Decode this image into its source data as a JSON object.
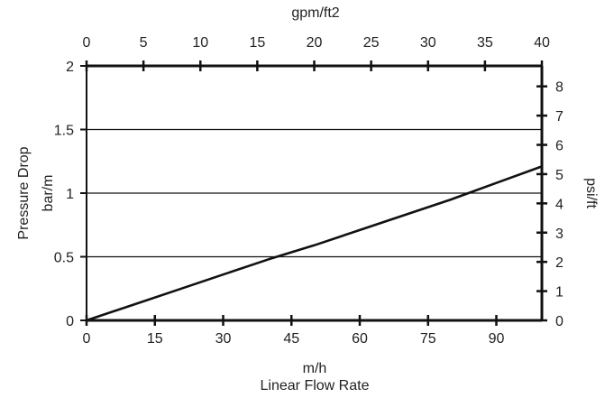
{
  "chart_data": {
    "type": "line",
    "title": "",
    "xlabel": "m/h",
    "xlabel_sub": "Linear Flow Rate",
    "ylabel": "Pressure Drop",
    "ylabel_sub": "bar/m",
    "x2label": "gpm/ft2",
    "y2label": "psi/ft",
    "xlim": [
      0,
      100
    ],
    "ylim": [
      0,
      2
    ],
    "x2lim": [
      0,
      40
    ],
    "y2lim": [
      0,
      8.7
    ],
    "x_ticks": [
      0,
      15,
      30,
      45,
      60,
      75,
      90
    ],
    "y_ticks": [
      0,
      0.5,
      1,
      1.5,
      2
    ],
    "x2_ticks": [
      0,
      5,
      10,
      15,
      20,
      25,
      30,
      35,
      40
    ],
    "y2_ticks": [
      0,
      1,
      2,
      3,
      4,
      5,
      6,
      7,
      8
    ],
    "grid": "horizontal",
    "series": [
      {
        "x": [
          0,
          10,
          20,
          30,
          40,
          50,
          60,
          70,
          80,
          90,
          100
        ],
        "y": [
          0,
          0.12,
          0.24,
          0.36,
          0.48,
          0.59,
          0.71,
          0.83,
          0.95,
          1.08,
          1.21
        ]
      }
    ],
    "colors": {
      "line": "#111111",
      "axis": "#111111",
      "grid": "#111111"
    }
  }
}
